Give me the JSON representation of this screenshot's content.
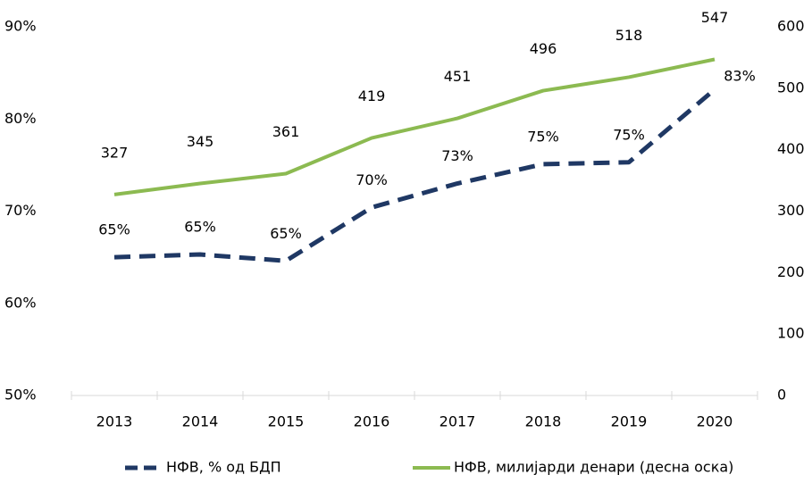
{
  "chart_data": {
    "type": "line",
    "categories": [
      "2013",
      "2014",
      "2015",
      "2016",
      "2017",
      "2018",
      "2019",
      "2020"
    ],
    "series": [
      {
        "name": "НФВ, % од БДП",
        "color": "#1f3864",
        "dashed": true,
        "values": [
          65.0,
          65.3,
          64.6,
          70.4,
          73.0,
          75.1,
          75.3,
          83.2
        ],
        "value_labels": [
          "65%",
          "65%",
          "65%",
          "70%",
          "73%",
          "75%",
          "75%",
          "83%"
        ]
      },
      {
        "name": "НФВ, милијарди денари (десна оска)",
        "color": "#8cba51",
        "axis": "y2",
        "values": [
          327,
          345,
          361,
          419,
          451,
          496,
          518,
          547
        ]
      }
    ],
    "ylim": [
      50,
      90
    ],
    "yticks": [
      {
        "value": 50,
        "label": "50%"
      },
      {
        "value": 60,
        "label": "60%"
      },
      {
        "value": 70,
        "label": "70%"
      },
      {
        "value": 80,
        "label": "80%"
      },
      {
        "value": 90,
        "label": "90%"
      }
    ],
    "y2lim": [
      0,
      600
    ],
    "y2ticks": [
      0,
      100,
      200,
      300,
      400,
      500,
      600
    ],
    "grid": false,
    "legend": "bottom"
  }
}
